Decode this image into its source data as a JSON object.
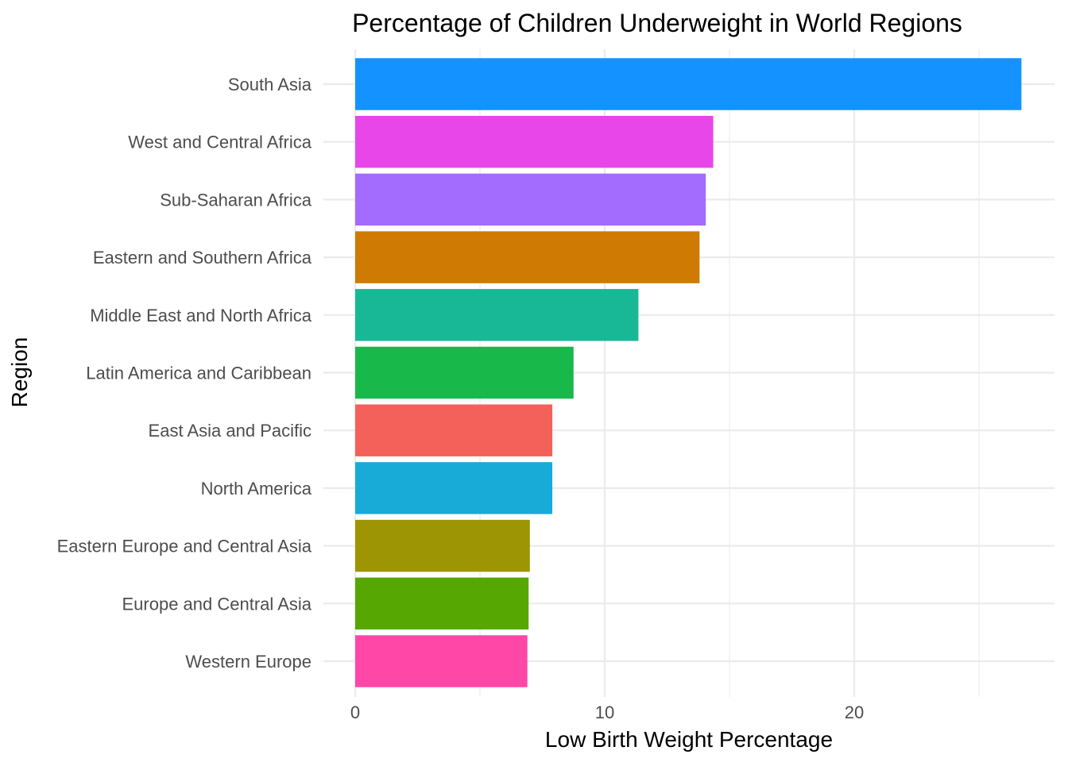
{
  "chart_data": {
    "type": "bar",
    "orientation": "horizontal",
    "title": "Percentage of Children Underweight in World Regions",
    "xlabel": "Low Birth Weight Percentage",
    "ylabel": "Region",
    "xlim": [
      0,
      27
    ],
    "x_ticks": [
      0,
      10,
      20
    ],
    "x_tick_labels": [
      "0",
      "10",
      "20"
    ],
    "grid": true,
    "legend": "none",
    "categories": [
      "South Asia",
      "West and Central Africa",
      "Sub-Saharan Africa",
      "Eastern and Southern Africa",
      "Middle East and North Africa",
      "Latin America and Caribbean",
      "East Asia and Pacific",
      "North America",
      "Eastern Europe and Central Asia",
      "Europe and Central Asia",
      "Western Europe"
    ],
    "values": [
      26.7,
      14.35,
      14.05,
      13.8,
      11.35,
      8.75,
      7.9,
      7.9,
      7.0,
      6.95,
      6.9
    ],
    "colors": [
      "#1492ff",
      "#e846e8",
      "#a36bfe",
      "#cf7a03",
      "#18b896",
      "#18b84a",
      "#f4615a",
      "#18abd7",
      "#9d9504",
      "#56a702",
      "#fe47a7"
    ]
  }
}
